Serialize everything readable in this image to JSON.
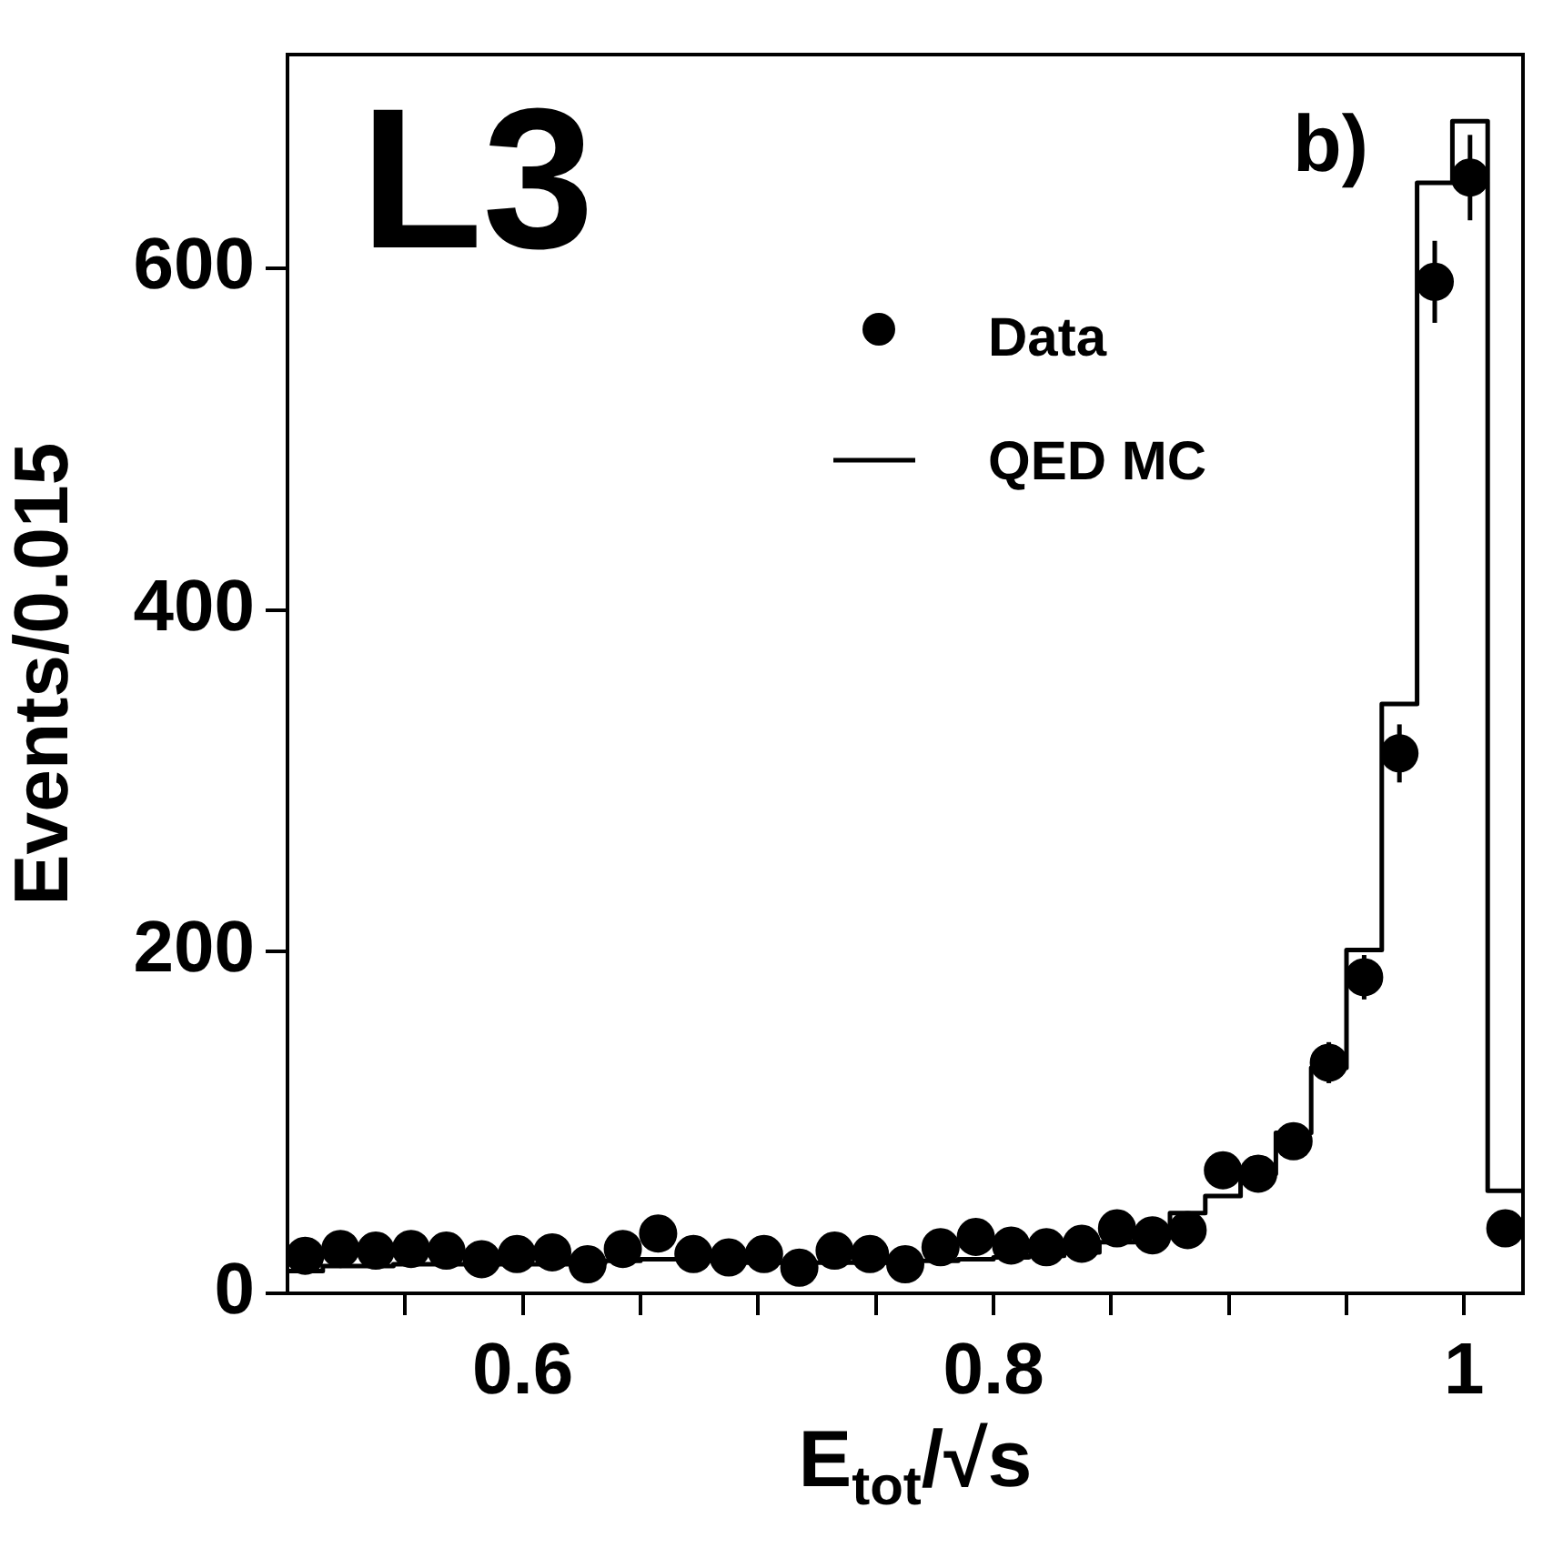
{
  "chart_data": {
    "type": "histogram",
    "xlabel": "E$_{tot}$/√s",
    "ylabel": "Events/0.015",
    "annotations": [
      "L3",
      "b)"
    ],
    "bins": [
      0.5,
      0.515,
      0.53,
      0.545,
      0.56,
      0.575,
      0.59,
      0.605,
      0.62,
      0.635,
      0.65,
      0.665,
      0.68,
      0.695,
      0.71,
      0.725,
      0.74,
      0.755,
      0.77,
      0.785,
      0.8,
      0.815,
      0.83,
      0.845,
      0.86,
      0.875,
      0.89,
      0.905,
      0.92,
      0.935,
      0.95,
      0.965,
      0.98,
      0.995,
      1.01,
      1.025
    ],
    "series": [
      {
        "name": "Data",
        "type": "scatter",
        "color": "#000000",
        "marker": "circle",
        "x": [
          0.5075,
          0.5225,
          0.5375,
          0.5525,
          0.5675,
          0.5825,
          0.5975,
          0.6125,
          0.6275,
          0.6425,
          0.6575,
          0.6725,
          0.6875,
          0.7025,
          0.7175,
          0.7325,
          0.7475,
          0.7625,
          0.7775,
          0.7925,
          0.8075,
          0.8225,
          0.8375,
          0.8525,
          0.8675,
          0.8825,
          0.8975,
          0.9125,
          0.9275,
          0.9425,
          0.9575,
          0.9725,
          0.9875,
          1.0025,
          1.0175
        ],
        "values": [
          22,
          26,
          25,
          26,
          25,
          20,
          23,
          24,
          17,
          26,
          35,
          23,
          21,
          23,
          15,
          25,
          23,
          17,
          27,
          33,
          28,
          27,
          29,
          38,
          34,
          37,
          72,
          70,
          89,
          135,
          185,
          316,
          592,
          653,
          38
        ],
        "errors": [
          null,
          null,
          null,
          null,
          null,
          null,
          null,
          null,
          null,
          null,
          null,
          null,
          null,
          null,
          null,
          null,
          null,
          null,
          null,
          null,
          null,
          null,
          null,
          null,
          null,
          null,
          null,
          null,
          null,
          12,
          13,
          17,
          24,
          25,
          null
        ]
      },
      {
        "name": "QED MC",
        "color": "#000000",
        "values": [
          13,
          16,
          16,
          17,
          17,
          17,
          17,
          17,
          18,
          19,
          20,
          20,
          19,
          18,
          18,
          18,
          18,
          19,
          19,
          20,
          21,
          22,
          24,
          30,
          38,
          47,
          57,
          70,
          94,
          132,
          201,
          345,
          650,
          686,
          60
        ]
      }
    ],
    "xlim": [
      0.5,
      1.025
    ],
    "xticks": [
      {
        "value": 0.55,
        "label": null
      },
      0.6,
      {
        "value": 0.65,
        "label": null
      },
      {
        "value": 0.7,
        "label": null
      },
      {
        "value": 0.75,
        "label": null
      },
      0.8,
      {
        "value": 0.85,
        "label": null
      },
      {
        "value": 0.9,
        "label": null
      },
      {
        "value": 0.95,
        "label": null
      },
      1
    ],
    "ylim": [
      0,
      725
    ],
    "yticks": [
      0,
      200,
      400,
      600
    ],
    "legend": "top right",
    "grid": false
  }
}
